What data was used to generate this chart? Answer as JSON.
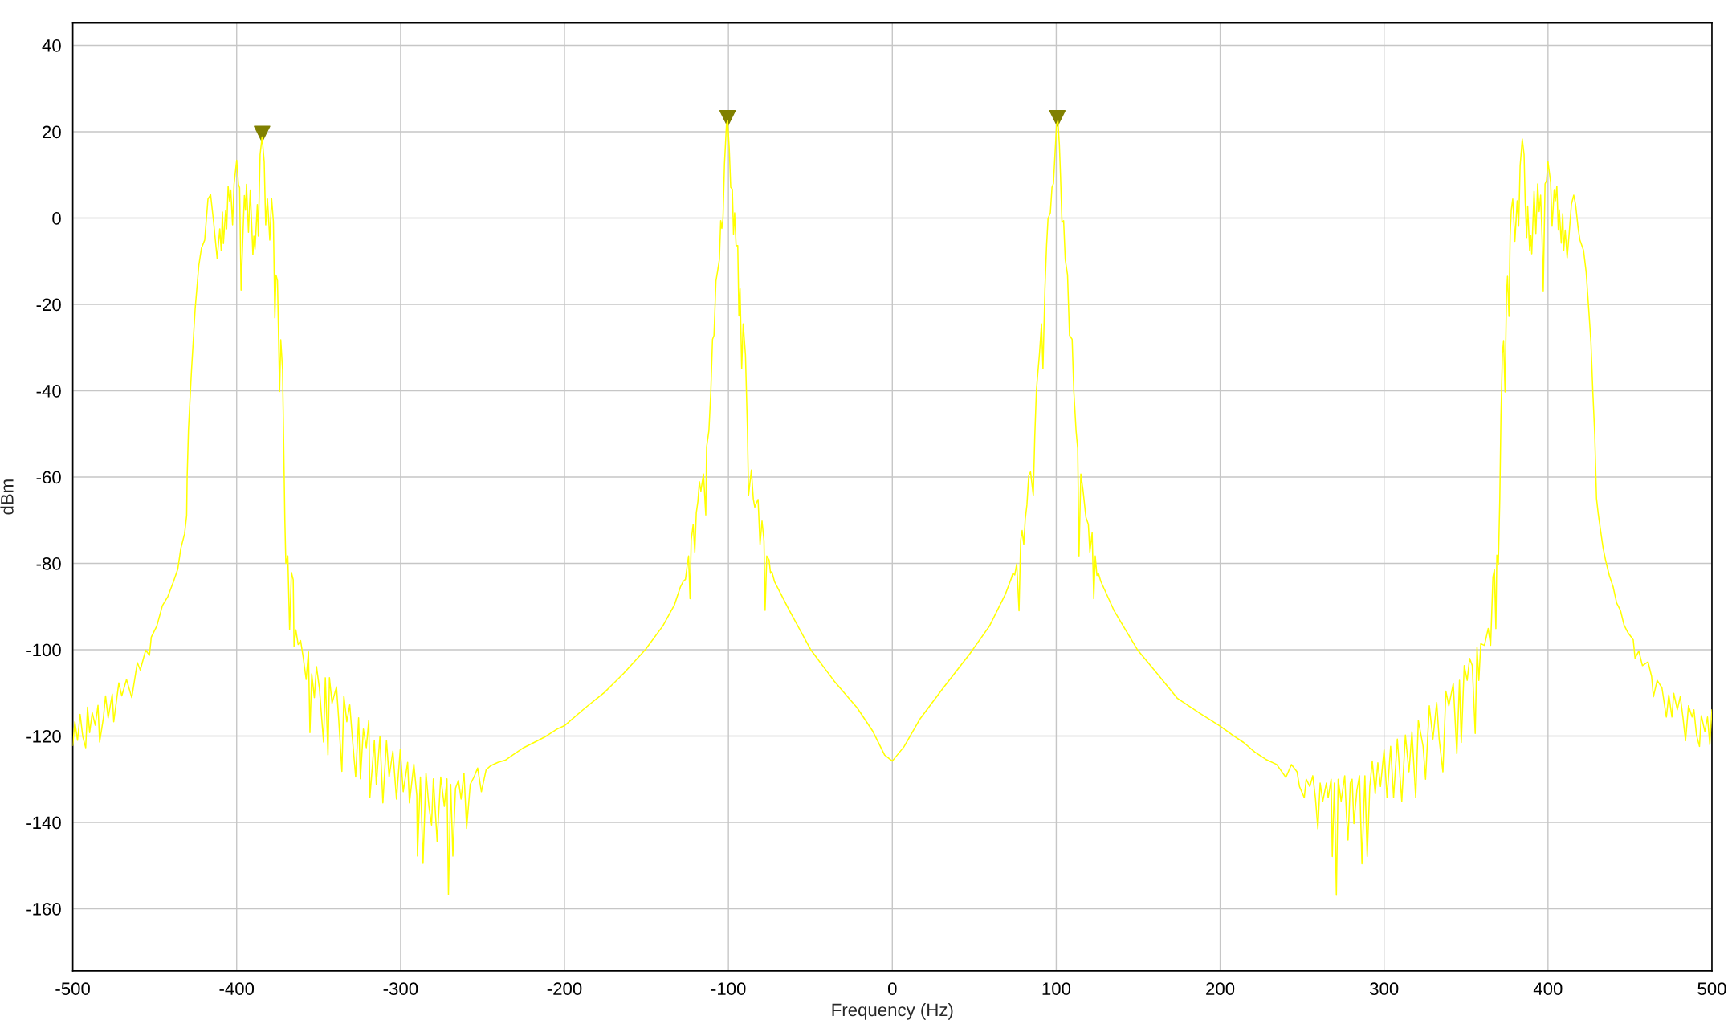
{
  "chart_data": {
    "type": "line",
    "xlabel": "Frequency (Hz)",
    "ylabel": "dBm",
    "xlim": [
      -500,
      500
    ],
    "xticks": [
      -500,
      -400,
      -300,
      -200,
      -100,
      0,
      100,
      200,
      300,
      400,
      500
    ],
    "ylim": [
      -174.4,
      45.2
    ],
    "yticks": [
      -160,
      -140,
      -120,
      -100,
      -80,
      -60,
      -40,
      -20,
      0,
      20,
      40
    ],
    "grid": true,
    "series": [
      {
        "color": "#ffff00",
        "line_style": "solid",
        "x": [
          -500,
          -498.7,
          -497.1,
          -495.5,
          -493.9,
          -492.1,
          -491,
          -489.7,
          -488.1,
          -486.3,
          -484.6,
          -483.6,
          -481.3,
          -480,
          -478.4,
          -475.9,
          -475,
          -471.9,
          -470.1,
          -467.2,
          -464,
          -460.6,
          -458.8,
          -455.5,
          -453.2,
          -452.1,
          -448.7,
          -445.3,
          -442,
          -438.6,
          -435.9,
          -434.1,
          -431.8,
          -430.5,
          -430.2,
          -429.4,
          -427.6,
          -425.3,
          -423.1,
          -421.5,
          -419.5,
          -417.5,
          -415.9,
          -414.1,
          -411.9,
          -410.3,
          -409.4,
          -408.7,
          -408.1,
          -406.7,
          -406.1,
          -405.2,
          -404.3,
          -403.6,
          -402.5,
          -401.6,
          -400,
          -398.9,
          -398.2,
          -397.3,
          -396.2,
          -395.3,
          -394.6,
          -394,
          -392.8,
          -391.7,
          -390.1,
          -389.5,
          -388.8,
          -387.4,
          -386.8,
          -385.7,
          -384.5,
          -383.2,
          -382.3,
          -381.2,
          -379.8,
          -378.7,
          -377.6,
          -376.7,
          -376,
          -375.1,
          -373.8,
          -373.1,
          -372,
          -370.6,
          -370,
          -368.8,
          -367.7,
          -366.6,
          -365.5,
          -365,
          -363.9,
          -362.5,
          -361,
          -359.4,
          -357.6,
          -356.2,
          -355.3,
          -354.2,
          -352.6,
          -351.3,
          -349.5,
          -347,
          -345.9,
          -344.3,
          -343.4,
          -341.8,
          -339.1,
          -337.8,
          -335.8,
          -334.6,
          -332.8,
          -331,
          -329.5,
          -327.4,
          -325.6,
          -324.5,
          -322.7,
          -320.9,
          -319.4,
          -318.7,
          -316,
          -314.8,
          -312.6,
          -310.8,
          -308.6,
          -307,
          -304.7,
          -302.5,
          -300.2,
          -298.4,
          -295.7,
          -294.6,
          -291.9,
          -290.1,
          -289.7,
          -287.9,
          -286.3,
          -284.5,
          -282.7,
          -281.1,
          -280,
          -277.7,
          -275.5,
          -273.3,
          -271.7,
          -270.8,
          -269.4,
          -268.1,
          -266.5,
          -264.7,
          -263.1,
          -261.3,
          -259.7,
          -257.5,
          -255.2,
          -253,
          -250.7,
          -247.8,
          -245.1,
          -240.6,
          -236.1,
          -231.6,
          -224.9,
          -218.1,
          -211.4,
          -204.6,
          -200,
          -187.4,
          -175.6,
          -163.7,
          -150.7,
          -140,
          -132.9,
          -129.3,
          -127.6,
          -126.2,
          -125.3,
          -124.3,
          -123.4,
          -122.7,
          -121.5,
          -120.5,
          -119.6,
          -118.6,
          -117.7,
          -116.8,
          -115.2,
          -113.8,
          -113.3,
          -111.9,
          -110.7,
          -109.7,
          -108.8,
          -107.6,
          -106.6,
          -105.5,
          -104.7,
          -104,
          -103.3,
          -102.4,
          -101.2,
          -100.5,
          -99.5,
          -98.6,
          -97.6,
          -96.9,
          -96.2,
          -95.3,
          -94.3,
          -93.6,
          -92.9,
          -91.9,
          -91,
          -89.6,
          -88.4,
          -87.7,
          -86,
          -84.8,
          -83.9,
          -82.9,
          -81.9,
          -80.7,
          -79.5,
          -78.3,
          -77.6,
          -76.6,
          -75.2,
          -74.3,
          -73.5,
          -71.9,
          -64.1,
          -49.8,
          -35.6,
          -21.4,
          -11.9,
          -4.7,
          0,
          7.1,
          16.6,
          30.8,
          47.4,
          59.3,
          68.8,
          72.4,
          73.5,
          74.7,
          75.9,
          77.3,
          78.3,
          79.2,
          80.2,
          81.1,
          82.1,
          83.2,
          84.3,
          86,
          86.9,
          87.9,
          89.8,
          91,
          91.9,
          93.1,
          94.1,
          95,
          96.4,
          97.4,
          98.3,
          99.3,
          100.2,
          101,
          101.9,
          102.6,
          103.5,
          104.5,
          105.5,
          106.9,
          108.1,
          109.7,
          110.7,
          112.1,
          113.1,
          113.9,
          115,
          116.4,
          118.1,
          119.6,
          120.5,
          121.9,
          122.9,
          123.8,
          124.8,
          125.7,
          127.2,
          135.2,
          149.5,
          161.3,
          174,
          187.4,
          200,
          207.6,
          214.3,
          221.1,
          227.8,
          234.5,
          240.1,
          243.5,
          246.9,
          248.4,
          251.3,
          252.5,
          254.7,
          256.5,
          258.1,
          259.6,
          261,
          262.6,
          264.8,
          265.9,
          267.7,
          268.4,
          269.7,
          270.9,
          272,
          273.8,
          276,
          277.1,
          278,
          279.4,
          280.5,
          281.6,
          283.4,
          285,
          286.5,
          288.3,
          289.7,
          291.3,
          292.8,
          294.6,
          296.2,
          297.8,
          300,
          301.8,
          304,
          305.8,
          308.1,
          310.8,
          313,
          315.2,
          317,
          319.3,
          320.9,
          323.8,
          325.3,
          327.6,
          329.8,
          332.1,
          333.6,
          335.9,
          337.7,
          339.5,
          342.2,
          344.4,
          346,
          347.1,
          348.9,
          350.7,
          352.2,
          353.8,
          355.6,
          356.7,
          357.8,
          359,
          361.2,
          363.5,
          365,
          366.4,
          367.3,
          368.2,
          368.8,
          369.7,
          370.6,
          371.3,
          372.2,
          372.9,
          373.8,
          374.7,
          375.3,
          376.2,
          376.9,
          377.6,
          378.5,
          379.8,
          381.2,
          382.1,
          383,
          384.3,
          385.4,
          386.1,
          387,
          387.6,
          388.8,
          389.5,
          390.1,
          391.5,
          392.6,
          393.7,
          394.6,
          395.5,
          396.4,
          397.1,
          398.2,
          399.1,
          400,
          401.6,
          402.5,
          403.8,
          404.5,
          405.4,
          406.3,
          406.9,
          408.1,
          409,
          409.6,
          410.5,
          411.7,
          413,
          414.3,
          415.7,
          416.8,
          418.4,
          419.5,
          421.7,
          423.3,
          424.7,
          426.2,
          427.4,
          428.5,
          429.6,
          430.7,
          432.3,
          433.6,
          435.2,
          437.4,
          439.7,
          441.9,
          444.2,
          446.4,
          448.7,
          452,
          453.1,
          455.4,
          457.6,
          461,
          463.2,
          464.3,
          466.6,
          469.5,
          472.2,
          473.7,
          475.6,
          476.7,
          478.9,
          480.7,
          482.3,
          483.9,
          485.7,
          487.9,
          489,
          490.6,
          492.4,
          493.5,
          495.7,
          497.3,
          498.7,
          500
        ],
        "values": [
          -122.2,
          -116.7,
          -121,
          -115,
          -120.1,
          -122.7,
          -113.3,
          -119.2,
          -114.6,
          -117.5,
          -112.9,
          -121.4,
          -115.8,
          -110.7,
          -115.8,
          -110.3,
          -116.7,
          -107.7,
          -110.7,
          -106.9,
          -111.1,
          -103,
          -104.7,
          -100.1,
          -101.3,
          -97.1,
          -94.5,
          -89.8,
          -87.7,
          -84.3,
          -81.3,
          -76.6,
          -73.2,
          -68.9,
          -60,
          -49,
          -35.6,
          -20.9,
          -11,
          -7,
          -5.1,
          4.4,
          5.4,
          -0.8,
          -9.4,
          -2.5,
          -7.6,
          1.4,
          -5.9,
          1.8,
          -2.5,
          7.4,
          3.9,
          6.5,
          -1.6,
          7.8,
          13.4,
          7.8,
          7,
          -16.7,
          -4.2,
          5.2,
          1.8,
          7.8,
          -3.3,
          6.5,
          -8.5,
          -4.2,
          -7.2,
          3.1,
          -4.2,
          14.7,
          18.8,
          13,
          -1.6,
          4.4,
          -5.1,
          4.6,
          -0.8,
          -23.1,
          -13.2,
          -14.5,
          -40.2,
          -28.2,
          -35.1,
          -70,
          -80,
          -78.3,
          -95.4,
          -82.1,
          -83.8,
          -99.2,
          -95.4,
          -98.8,
          -97.9,
          -101.8,
          -106.9,
          -100.5,
          -119.2,
          -105.6,
          -111.1,
          -103.9,
          -109,
          -121.4,
          -106.5,
          -124.4,
          -106.5,
          -112.4,
          -108.6,
          -115.8,
          -128.2,
          -110.7,
          -116.7,
          -112.8,
          -120.1,
          -129.5,
          -115.8,
          -129.9,
          -118.4,
          -122.7,
          -116.3,
          -134.2,
          -121,
          -131.2,
          -120.1,
          -135.5,
          -121,
          -129.5,
          -123.5,
          -134.6,
          -123.1,
          -132.9,
          -126.1,
          -135.5,
          -126.5,
          -133.8,
          -147.8,
          -129.5,
          -149.5,
          -128.6,
          -136.3,
          -140.6,
          -129.9,
          -144.4,
          -129.5,
          -136.3,
          -129.9,
          -156.8,
          -131.2,
          -147.8,
          -132.1,
          -130.3,
          -134.6,
          -128.6,
          -141.4,
          -131.2,
          -129.5,
          -127.4,
          -132.9,
          -127.8,
          -126.9,
          -126.1,
          -125.6,
          -124.4,
          -122.7,
          -121.4,
          -120.1,
          -118.4,
          -117.6,
          -113.5,
          -109.9,
          -105.4,
          -100,
          -94.5,
          -89.6,
          -85.5,
          -84.2,
          -83.7,
          -81,
          -78.3,
          -88.2,
          -74.6,
          -71,
          -77.4,
          -68.3,
          -65.6,
          -61.1,
          -63.3,
          -59.3,
          -68.8,
          -53,
          -49.3,
          -39.9,
          -28.1,
          -27.2,
          -14.6,
          -12.3,
          -9.6,
          -0.6,
          -2.4,
          -0.1,
          12.5,
          21.6,
          22.5,
          16.2,
          7.1,
          6.7,
          -3.7,
          1.2,
          -6.4,
          -6.4,
          -22.7,
          -16.4,
          -34.9,
          -24.5,
          -31.7,
          -48.9,
          -64.2,
          -58.4,
          -65.1,
          -67,
          -66,
          -65.2,
          -75.6,
          -70.2,
          -74.7,
          -90.9,
          -78.3,
          -79.2,
          -82.3,
          -81.9,
          -84.2,
          -90,
          -100,
          -107.2,
          -113.5,
          -118.9,
          -124.4,
          -125.8,
          -122.5,
          -116.2,
          -109,
          -100.9,
          -94.5,
          -87.3,
          -83.7,
          -82.3,
          -82.7,
          -80.1,
          -91,
          -74.7,
          -72.4,
          -75.6,
          -69.7,
          -66.5,
          -59.7,
          -58.8,
          -64.2,
          -50.7,
          -39.9,
          -31.3,
          -24.5,
          -34.9,
          -16.4,
          -6.4,
          -0.1,
          1.2,
          7.1,
          8,
          15.2,
          21.6,
          22.5,
          17.1,
          9.8,
          -1,
          -0.6,
          -9.6,
          -13.2,
          -27.2,
          -28.1,
          -39.9,
          -49.3,
          -53.4,
          -78.3,
          -59.3,
          -63.3,
          -69.3,
          -71,
          -77.4,
          -72.9,
          -88.2,
          -78.3,
          -82.8,
          -82.3,
          -84.2,
          -90.9,
          -100,
          -105.4,
          -111.3,
          -114.7,
          -117.7,
          -119.8,
          -121.5,
          -123.7,
          -125.4,
          -126.6,
          -129.6,
          -126.6,
          -128.3,
          -131.7,
          -134.3,
          -130,
          -131.7,
          -129.2,
          -134.3,
          -141.5,
          -130.9,
          -135.1,
          -130.9,
          -134.3,
          -130,
          -147.9,
          -130.9,
          -156.9,
          -130,
          -135.1,
          -129.2,
          -138.6,
          -144.1,
          -130.9,
          -130,
          -140.3,
          -132.6,
          -129.2,
          -149.6,
          -129.2,
          -147.9,
          -131.7,
          -125.8,
          -133.4,
          -126.2,
          -131.7,
          -123.2,
          -134.3,
          -122.4,
          -134.3,
          -120.7,
          -135.1,
          -119.8,
          -128.3,
          -119,
          -134.3,
          -116.4,
          -122.4,
          -130,
          -113,
          -120.7,
          -112.2,
          -120.7,
          -128.3,
          -109.6,
          -113,
          -107.9,
          -124.1,
          -107.1,
          -121.5,
          -103.7,
          -107.1,
          -102,
          -103.7,
          -119.4,
          -99.4,
          -107.1,
          -98.6,
          -99,
          -95.1,
          -99,
          -83.2,
          -81.5,
          -95.1,
          -78.1,
          -80.3,
          -65,
          -45.8,
          -31.4,
          -28.4,
          -40.3,
          -17.7,
          -13.5,
          -22.8,
          -4.1,
          1.9,
          4.4,
          -5.4,
          4,
          -1.9,
          12.1,
          18.3,
          14.7,
          3.6,
          -4.5,
          2.8,
          -7.5,
          -4.1,
          -8.3,
          6.2,
          -3.6,
          7.9,
          1.5,
          5.3,
          -4.5,
          -16.9,
          7.9,
          8.7,
          13,
          8.3,
          -1.9,
          6.6,
          4,
          7.4,
          -2.8,
          1.9,
          -5.8,
          1,
          -7.5,
          -2.8,
          -9.2,
          -3.2,
          3.2,
          5.3,
          3.2,
          -2.4,
          -5.1,
          -7.5,
          -12.6,
          -20.3,
          -28.8,
          -40.7,
          -50.1,
          -65,
          -68.7,
          -73,
          -76.4,
          -79.4,
          -82.8,
          -85.4,
          -89.2,
          -90.9,
          -94.3,
          -96,
          -97.7,
          -102,
          -100.3,
          -103.7,
          -102.8,
          -106.2,
          -110.9,
          -107.1,
          -108.8,
          -115.6,
          -110.5,
          -115.6,
          -110.1,
          -113.9,
          -110.9,
          -115.6,
          -121.1,
          -113,
          -115.6,
          -113.9,
          -119.8,
          -122.4,
          -115.2,
          -119,
          -115.6,
          -122,
          -113.9
        ]
      },
      {
        "type": "scatter",
        "color": "#808000",
        "marker": "triangle",
        "x": [
          -384.5,
          -100.5,
          100.7
        ],
        "values": [
          19.5,
          23.1,
          23.1
        ]
      }
    ]
  }
}
